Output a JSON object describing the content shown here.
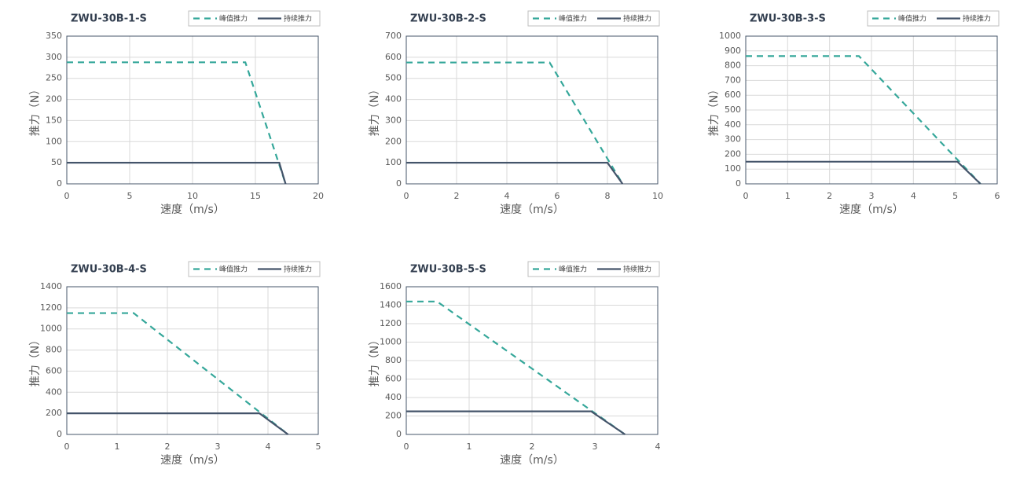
{
  "chart_data": [
    {
      "type": "line",
      "title": "ZWU-30B-1-S",
      "xlabel": "速度（m/s）",
      "ylabel": "推力（N）",
      "xlim": [
        0,
        20
      ],
      "xticks": [
        0,
        5,
        10,
        15,
        20
      ],
      "ylim": [
        0,
        350
      ],
      "yticks": [
        0,
        50,
        100,
        150,
        200,
        250,
        300,
        350
      ],
      "grid": true,
      "legend": "top-right",
      "series": [
        {
          "name": "峰值推力",
          "color": "#35a79a",
          "dashed": true,
          "x": [
            0,
            14.2,
            17.4
          ],
          "values": [
            288,
            288,
            0
          ]
        },
        {
          "name": "持续推力",
          "color": "#44546a",
          "dashed": false,
          "x": [
            0,
            16.9,
            17.4
          ],
          "values": [
            50,
            50,
            0
          ]
        }
      ]
    },
    {
      "type": "line",
      "title": "ZWU-30B-2-S",
      "xlabel": "速度（m/s）",
      "ylabel": "推力（N）",
      "xlim": [
        0,
        10
      ],
      "xticks": [
        0,
        2,
        4,
        6,
        8,
        10
      ],
      "ylim": [
        0,
        700
      ],
      "yticks": [
        0,
        100,
        200,
        300,
        400,
        500,
        600,
        700
      ],
      "grid": true,
      "legend": "top-right",
      "series": [
        {
          "name": "峰值推力",
          "color": "#35a79a",
          "dashed": true,
          "x": [
            0,
            5.7,
            8.6
          ],
          "values": [
            575,
            575,
            0
          ]
        },
        {
          "name": "持续推力",
          "color": "#44546a",
          "dashed": false,
          "x": [
            0,
            8.0,
            8.6
          ],
          "values": [
            100,
            100,
            0
          ]
        }
      ]
    },
    {
      "type": "line",
      "title": "ZWU-30B-3-S",
      "xlabel": "速度（m/s）",
      "ylabel": "推力（N）",
      "xlim": [
        0,
        6
      ],
      "xticks": [
        0,
        1,
        2,
        3,
        4,
        5,
        6
      ],
      "ylim": [
        0,
        1000
      ],
      "yticks": [
        0,
        100,
        200,
        300,
        400,
        500,
        600,
        700,
        800,
        900,
        1000
      ],
      "grid": true,
      "legend": "top-right",
      "series": [
        {
          "name": "峰值推力",
          "color": "#35a79a",
          "dashed": true,
          "x": [
            0,
            2.7,
            5.6
          ],
          "values": [
            865,
            865,
            0
          ]
        },
        {
          "name": "持续推力",
          "color": "#44546a",
          "dashed": false,
          "x": [
            0,
            5.05,
            5.6
          ],
          "values": [
            150,
            150,
            0
          ]
        }
      ]
    },
    {
      "type": "line",
      "title": "ZWU-30B-4-S",
      "xlabel": "速度（m/s）",
      "ylabel": "推力（N）",
      "xlim": [
        0,
        5
      ],
      "xticks": [
        0,
        1,
        2,
        3,
        4,
        5
      ],
      "ylim": [
        0,
        1400
      ],
      "yticks": [
        0,
        200,
        400,
        600,
        800,
        1000,
        1200,
        1400
      ],
      "grid": true,
      "legend": "top-right",
      "series": [
        {
          "name": "峰值推力",
          "color": "#35a79a",
          "dashed": true,
          "x": [
            0,
            1.33,
            4.4
          ],
          "values": [
            1150,
            1150,
            0
          ]
        },
        {
          "name": "持续推力",
          "color": "#44546a",
          "dashed": false,
          "x": [
            0,
            3.83,
            4.4
          ],
          "values": [
            200,
            200,
            0
          ]
        }
      ]
    },
    {
      "type": "line",
      "title": "ZWU-30B-5-S",
      "xlabel": "速度（m/s）",
      "ylabel": "推力（N）",
      "xlim": [
        0,
        4
      ],
      "xticks": [
        0,
        1,
        2,
        3,
        4
      ],
      "ylim": [
        0,
        1600
      ],
      "yticks": [
        0,
        200,
        400,
        600,
        800,
        1000,
        1200,
        1400,
        1600
      ],
      "grid": true,
      "legend": "top-right",
      "series": [
        {
          "name": "峰值推力",
          "color": "#35a79a",
          "dashed": true,
          "x": [
            0,
            0.49,
            3.48
          ],
          "values": [
            1440,
            1440,
            0
          ]
        },
        {
          "name": "持续推力",
          "color": "#44546a",
          "dashed": false,
          "x": [
            0,
            2.94,
            3.48
          ],
          "values": [
            250,
            250,
            0
          ]
        }
      ]
    }
  ]
}
